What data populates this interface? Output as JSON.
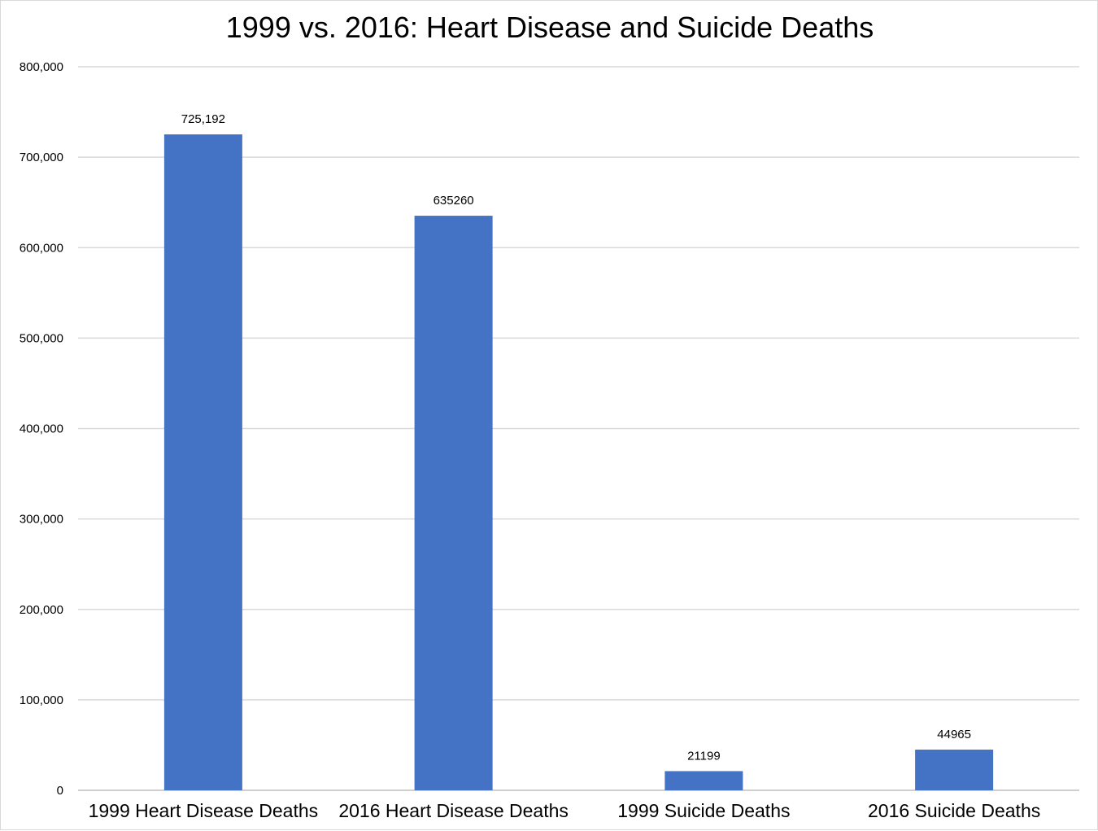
{
  "chart_data": {
    "type": "bar",
    "title": "1999 vs. 2016: Heart Disease and Suicide Deaths",
    "categories": [
      "1999 Heart Disease Deaths",
      "2016 Heart Disease Deaths",
      "1999 Suicide Deaths",
      "2016 Suicide Deaths"
    ],
    "values": [
      725192,
      635260,
      21199,
      44965
    ],
    "data_labels": [
      "725,192",
      "635260",
      "21199",
      "44965"
    ],
    "ylim": [
      0,
      800000
    ],
    "y_ticks": [
      0,
      100000,
      200000,
      300000,
      400000,
      500000,
      600000,
      700000,
      800000
    ],
    "y_tick_labels": [
      "0",
      "100,000",
      "200,000",
      "300,000",
      "400,000",
      "500,000",
      "600,000",
      "700,000",
      "800,000"
    ],
    "xlabel": "",
    "ylabel": "",
    "grid": true,
    "legend": "none",
    "bar_color": "#4472C4"
  }
}
